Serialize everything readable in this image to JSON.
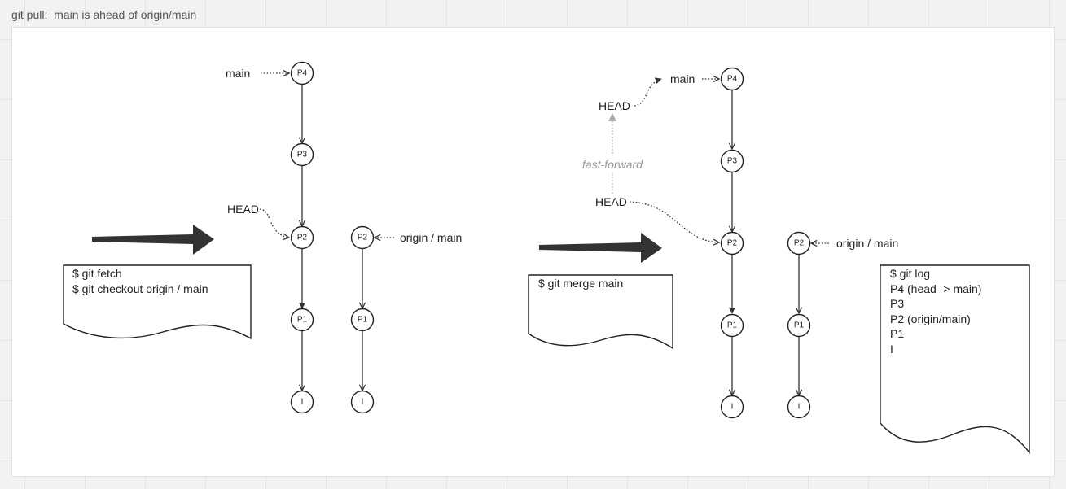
{
  "board": {
    "title": "git pull:  main is ahead of origin/main"
  },
  "left_panel": {
    "commands": [
      "$ git fetch",
      "$ git checkout origin / main"
    ],
    "labels": {
      "main": "main",
      "head": "HEAD",
      "origin": "origin / main"
    },
    "local_chain": [
      "P4",
      "P3",
      "P2",
      "P1",
      "I"
    ],
    "origin_chain": [
      "P2",
      "P1",
      "I"
    ]
  },
  "right_panel": {
    "commands": [
      "$ git merge main"
    ],
    "labels": {
      "main": "main",
      "head_new": "HEAD",
      "head_old": "HEAD",
      "fast_forward": "fast-forward",
      "origin": "origin / main"
    },
    "local_chain": [
      "P4",
      "P3",
      "P2",
      "P1",
      "I"
    ],
    "origin_chain": [
      "P2",
      "P1",
      "I"
    ],
    "log": [
      "$ git log",
      "P4 (head -> main)",
      "P3",
      "P2 (origin/main)",
      "P1",
      "I"
    ]
  },
  "colors": {
    "stroke": "#222222",
    "fast_forward": "#aaaaaa",
    "canvas": "#f2f2f2",
    "frame": "#ffffff"
  }
}
